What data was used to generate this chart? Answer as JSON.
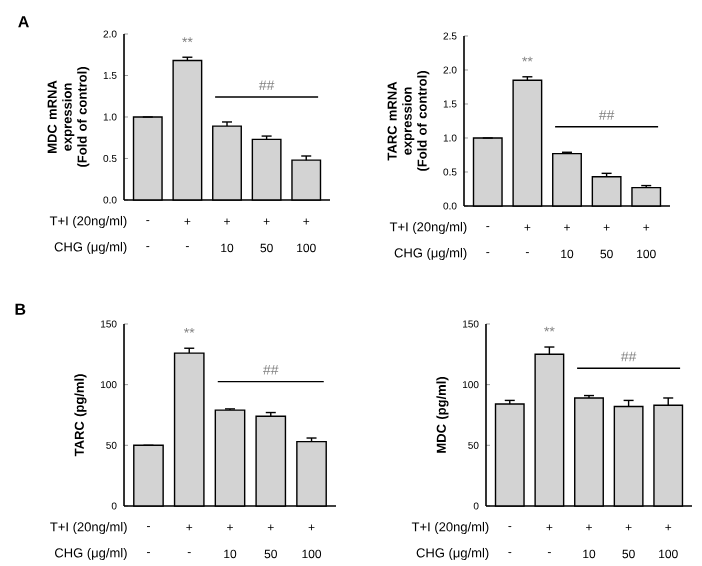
{
  "chart_data": [
    {
      "type": "bar",
      "title": "A",
      "ylabel": "MDC mRNA expression (Fold of control)",
      "categories": [
        null,
        null,
        null,
        null,
        null
      ],
      "values": [
        1.0,
        1.68,
        0.89,
        0.73,
        0.48
      ],
      "errors": [
        null,
        0.04,
        0.05,
        0.04,
        0.05
      ],
      "color": "#d3d3d3",
      "ylim": [
        0,
        2.0
      ],
      "yticks": [
        {
          "value": 0,
          "label": "0.0"
        },
        {
          "value": 0.5,
          "label": "0.5"
        },
        {
          "value": 1.0,
          "label": "1.0"
        },
        {
          "value": 1.5,
          "label": "1.5"
        },
        {
          "value": 2.0,
          "label": "2.0"
        }
      ],
      "annotations": [
        "**",
        "##",
        "T+I (20ng/ml)",
        "-",
        "+",
        "+",
        "+",
        "+",
        "CHG (μg/ml)",
        "-",
        "-",
        "10",
        "50",
        "100"
      ]
    },
    {
      "type": "bar",
      "ylabel": "TARC mRNA expression (Fold of control)",
      "categories": [
        null,
        null,
        null,
        null,
        null
      ],
      "values": [
        1.0,
        1.85,
        0.77,
        0.43,
        0.27
      ],
      "errors": [
        null,
        0.05,
        0.02,
        0.05,
        0.03
      ],
      "color": "#d3d3d3",
      "ylim": [
        0,
        2.5
      ],
      "yticks": [
        {
          "value": 0,
          "label": "0.0"
        },
        {
          "value": 0.5,
          "label": "0.5"
        },
        {
          "value": 1.0,
          "label": "1.0"
        },
        {
          "value": 1.5,
          "label": "1.5"
        },
        {
          "value": 2.0,
          "label": "2.0"
        },
        {
          "value": 2.5,
          "label": "2.5"
        }
      ],
      "annotations": [
        "**",
        "##",
        "T+I (20ng/ml)",
        "-",
        "+",
        "+",
        "+",
        "+",
        "CHG (μg/ml)",
        "-",
        "-",
        "10",
        "50",
        "100"
      ]
    },
    {
      "type": "bar",
      "title": "B",
      "ylabel": "TARC (pg/ml)",
      "categories": [
        null,
        null,
        null,
        null,
        null
      ],
      "values": [
        50,
        126,
        79,
        74,
        53
      ],
      "errors": [
        null,
        4,
        1,
        3,
        3
      ],
      "color": "#d3d3d3",
      "ylim": [
        0,
        150
      ],
      "yticks": [
        0,
        50,
        100,
        150
      ],
      "annotations": [
        "**",
        "##",
        "T+I (20ng/ml)",
        "-",
        "+",
        "+",
        "+",
        "+",
        "CHG (μg/ml)",
        "-",
        "-",
        "10",
        "50",
        "100"
      ]
    },
    {
      "type": "bar",
      "ylabel": "MDC (pg/ml)",
      "categories": [
        null,
        null,
        null,
        null,
        null
      ],
      "values": [
        84,
        125,
        89,
        82,
        83
      ],
      "errors": [
        3,
        6,
        2,
        5,
        6
      ],
      "color": "#d3d3d3",
      "ylim": [
        0,
        150
      ],
      "yticks": [
        0,
        50,
        100,
        150
      ],
      "annotations": [
        "**",
        "##",
        "T+I (20ng/ml)",
        "-",
        "+",
        "+",
        "+",
        "+",
        "CHG (μg/ml)",
        "-",
        "-",
        "10",
        "50",
        "100"
      ]
    }
  ]
}
